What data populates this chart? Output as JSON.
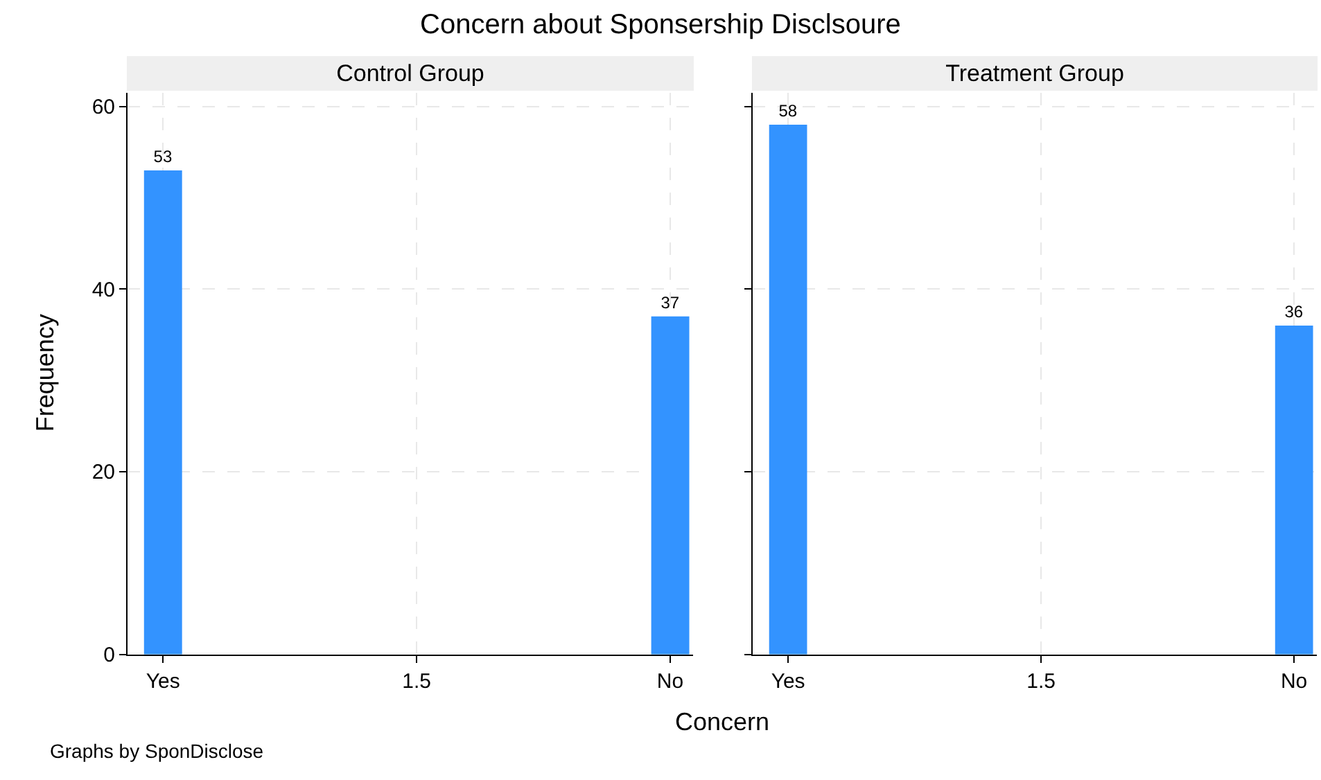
{
  "chart_data": [
    {
      "type": "bar",
      "title": "Concern about Sponsership Disclsoure",
      "subtitle": "Control Group",
      "xlabel": "Concern",
      "ylabel": "Frequency",
      "annotations": [
        "Graphs by SponDisclose"
      ],
      "categories": [
        "Yes",
        "1.5",
        "No"
      ],
      "values": [
        53,
        null,
        37
      ],
      "value_labels": [
        "53",
        null,
        "37"
      ],
      "color": "#3393ff",
      "ylim": [
        0,
        61.5
      ],
      "yticks": [
        0,
        20,
        40,
        60
      ],
      "grid": true
    },
    {
      "type": "bar",
      "subtitle": "Treatment Group",
      "categories": [
        "Yes",
        "1.5",
        "No"
      ],
      "values": [
        58,
        null,
        36
      ],
      "value_labels": [
        "58",
        null,
        "36"
      ],
      "color": "#3393ff",
      "ylim": [
        0,
        61.5
      ],
      "yticks": [
        0,
        20,
        40,
        60
      ],
      "grid": true,
      "tick_labels": "x"
    }
  ]
}
